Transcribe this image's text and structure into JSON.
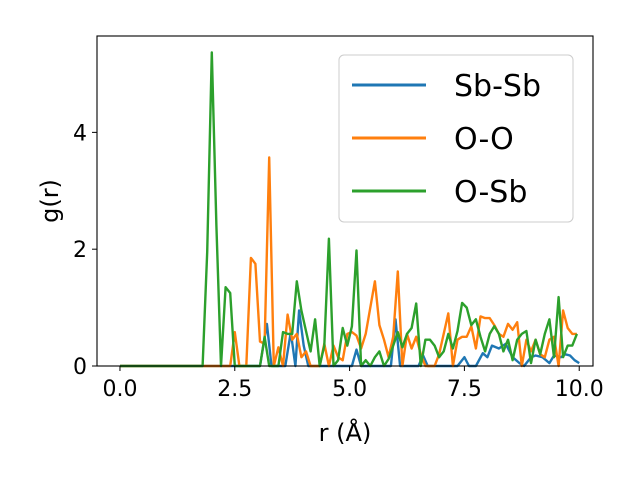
{
  "chart_data": {
    "type": "line",
    "xlabel": "r (Å)",
    "ylabel": "g(r)",
    "xlim": [
      -0.5,
      10.3
    ],
    "ylim": [
      0,
      5.65
    ],
    "xticks": [
      0.0,
      2.5,
      5.0,
      7.5,
      10.0
    ],
    "xtick_labels": [
      "0.0",
      "2.5",
      "5.0",
      "7.5",
      "10.0"
    ],
    "yticks": [
      0,
      2,
      4
    ],
    "ytick_labels": [
      "0",
      "2",
      "4"
    ],
    "grid": false,
    "legend_position": "top-right",
    "series": [
      {
        "name": "Sb-Sb",
        "color": "#1f77b4",
        "points": [
          [
            0,
            0
          ],
          [
            3.05,
            0
          ],
          [
            3.2,
            0.72
          ],
          [
            3.3,
            0
          ],
          [
            3.6,
            0
          ],
          [
            3.72,
            0.58
          ],
          [
            3.82,
            0
          ],
          [
            3.9,
            0.95
          ],
          [
            4.0,
            0.35
          ],
          [
            4.1,
            0
          ],
          [
            5.05,
            0
          ],
          [
            5.15,
            0.28
          ],
          [
            5.25,
            0
          ],
          [
            5.9,
            0
          ],
          [
            6.0,
            0.8
          ],
          [
            6.1,
            0
          ],
          [
            6.5,
            0
          ],
          [
            6.6,
            0.18
          ],
          [
            6.7,
            0
          ],
          [
            7.35,
            0
          ],
          [
            7.5,
            0.15
          ],
          [
            7.6,
            0
          ],
          [
            7.75,
            0
          ],
          [
            7.9,
            0.22
          ],
          [
            8.0,
            0.15
          ],
          [
            8.1,
            0.35
          ],
          [
            8.25,
            0.3
          ],
          [
            8.4,
            0.38
          ],
          [
            8.55,
            0.15
          ],
          [
            8.7,
            0.05
          ],
          [
            8.8,
            0
          ],
          [
            8.95,
            0.15
          ],
          [
            9.05,
            0.18
          ],
          [
            9.2,
            0.15
          ],
          [
            9.35,
            0.05
          ],
          [
            9.45,
            0.18
          ],
          [
            9.6,
            0.15
          ],
          [
            9.7,
            0.2
          ],
          [
            9.8,
            0.18
          ],
          [
            9.9,
            0.1
          ],
          [
            10.0,
            0.05
          ]
        ]
      },
      {
        "name": "O-O",
        "color": "#ff7f0e",
        "points": [
          [
            0,
            0
          ],
          [
            2.4,
            0
          ],
          [
            2.5,
            0.58
          ],
          [
            2.6,
            0
          ],
          [
            2.75,
            0
          ],
          [
            2.85,
            1.85
          ],
          [
            2.95,
            1.75
          ],
          [
            3.05,
            0.42
          ],
          [
            3.15,
            0.38
          ],
          [
            3.25,
            3.57
          ],
          [
            3.35,
            0
          ],
          [
            3.45,
            0.32
          ],
          [
            3.55,
            0
          ],
          [
            3.65,
            0.88
          ],
          [
            3.75,
            0.45
          ],
          [
            3.85,
            0.55
          ],
          [
            3.95,
            0.15
          ],
          [
            4.05,
            0.25
          ],
          [
            4.15,
            0
          ],
          [
            4.35,
            0
          ],
          [
            4.45,
            0.38
          ],
          [
            4.55,
            0
          ],
          [
            4.65,
            0.35
          ],
          [
            4.75,
            0.15
          ],
          [
            4.85,
            0.1
          ],
          [
            4.95,
            0.55
          ],
          [
            5.05,
            0.58
          ],
          [
            5.15,
            0.52
          ],
          [
            5.25,
            0.3
          ],
          [
            5.35,
            0.55
          ],
          [
            5.45,
            1.0
          ],
          [
            5.55,
            1.45
          ],
          [
            5.65,
            0.7
          ],
          [
            5.75,
            0.45
          ],
          [
            5.85,
            0.15
          ],
          [
            5.95,
            0.5
          ],
          [
            6.05,
            1.62
          ],
          [
            6.15,
            0
          ],
          [
            6.25,
            0.55
          ],
          [
            6.35,
            0.3
          ],
          [
            6.45,
            0.5
          ],
          [
            6.55,
            0.2
          ],
          [
            6.65,
            0
          ],
          [
            6.85,
            0
          ],
          [
            6.95,
            0.2
          ],
          [
            7.05,
            0.55
          ],
          [
            7.15,
            0.9
          ],
          [
            7.25,
            0
          ],
          [
            7.35,
            0.45
          ],
          [
            7.45,
            0.5
          ],
          [
            7.55,
            0.5
          ],
          [
            7.65,
            0.68
          ],
          [
            7.75,
            0.3
          ],
          [
            7.85,
            0.85
          ],
          [
            7.95,
            0.82
          ],
          [
            8.05,
            0.82
          ],
          [
            8.15,
            0.7
          ],
          [
            8.25,
            0.55
          ],
          [
            8.35,
            0.5
          ],
          [
            8.45,
            0.72
          ],
          [
            8.55,
            0.62
          ],
          [
            8.65,
            0.75
          ],
          [
            8.75,
            0
          ],
          [
            8.85,
            0.45
          ],
          [
            8.95,
            0.25
          ],
          [
            9.05,
            0.45
          ],
          [
            9.15,
            0.2
          ],
          [
            9.25,
            0.15
          ],
          [
            9.35,
            0.45
          ],
          [
            9.45,
            0.5
          ],
          [
            9.55,
            0
          ],
          [
            9.65,
            0.95
          ],
          [
            9.75,
            0.65
          ],
          [
            9.85,
            0.55
          ],
          [
            9.95,
            0.55
          ]
        ]
      },
      {
        "name": "O-Sb",
        "color": "#2ca02c",
        "points": [
          [
            0,
            0
          ],
          [
            1.8,
            0
          ],
          [
            1.9,
            1.95
          ],
          [
            2.0,
            5.37
          ],
          [
            2.1,
            2.4
          ],
          [
            2.2,
            0
          ],
          [
            2.3,
            1.35
          ],
          [
            2.4,
            1.25
          ],
          [
            2.5,
            0
          ],
          [
            3.05,
            0
          ],
          [
            3.15,
            0.5
          ],
          [
            3.25,
            0
          ],
          [
            3.45,
            0
          ],
          [
            3.55,
            0.58
          ],
          [
            3.65,
            0.55
          ],
          [
            3.75,
            0.55
          ],
          [
            3.85,
            1.45
          ],
          [
            3.95,
            0.95
          ],
          [
            4.05,
            0.6
          ],
          [
            4.15,
            0.25
          ],
          [
            4.25,
            0.8
          ],
          [
            4.35,
            0
          ],
          [
            4.45,
            0.35
          ],
          [
            4.55,
            2.18
          ],
          [
            4.65,
            0
          ],
          [
            4.75,
            0.1
          ],
          [
            4.85,
            0.65
          ],
          [
            4.95,
            0.35
          ],
          [
            5.05,
            0.68
          ],
          [
            5.15,
            1.98
          ],
          [
            5.25,
            0
          ],
          [
            5.35,
            0.1
          ],
          [
            5.45,
            0
          ],
          [
            5.55,
            0.15
          ],
          [
            5.65,
            0.25
          ],
          [
            5.75,
            0
          ],
          [
            5.85,
            0.12
          ],
          [
            5.95,
            0.35
          ],
          [
            6.05,
            0.58
          ],
          [
            6.15,
            0.32
          ],
          [
            6.25,
            0.55
          ],
          [
            6.35,
            0.65
          ],
          [
            6.45,
            1.07
          ],
          [
            6.55,
            0
          ],
          [
            6.65,
            0.45
          ],
          [
            6.75,
            0.45
          ],
          [
            6.85,
            0.35
          ],
          [
            6.95,
            0.15
          ],
          [
            7.05,
            0.25
          ],
          [
            7.15,
            0.55
          ],
          [
            7.25,
            0.3
          ],
          [
            7.35,
            0.6
          ],
          [
            7.45,
            1.08
          ],
          [
            7.55,
            1.0
          ],
          [
            7.65,
            0.7
          ],
          [
            7.75,
            0.8
          ],
          [
            7.85,
            0.5
          ],
          [
            7.95,
            0.25
          ],
          [
            8.05,
            0.55
          ],
          [
            8.15,
            0.68
          ],
          [
            8.25,
            0.55
          ],
          [
            8.35,
            0.25
          ],
          [
            8.45,
            0.45
          ],
          [
            8.55,
            0.1
          ],
          [
            8.65,
            0.45
          ],
          [
            8.75,
            0.55
          ],
          [
            8.85,
            0.6
          ],
          [
            8.95,
            0.05
          ],
          [
            9.05,
            0.45
          ],
          [
            9.15,
            0.2
          ],
          [
            9.25,
            0.55
          ],
          [
            9.35,
            0.8
          ],
          [
            9.45,
            0.15
          ],
          [
            9.55,
            1.18
          ],
          [
            9.65,
            0.15
          ],
          [
            9.75,
            0.35
          ],
          [
            9.85,
            0.35
          ],
          [
            9.95,
            0.55
          ]
        ]
      }
    ]
  }
}
